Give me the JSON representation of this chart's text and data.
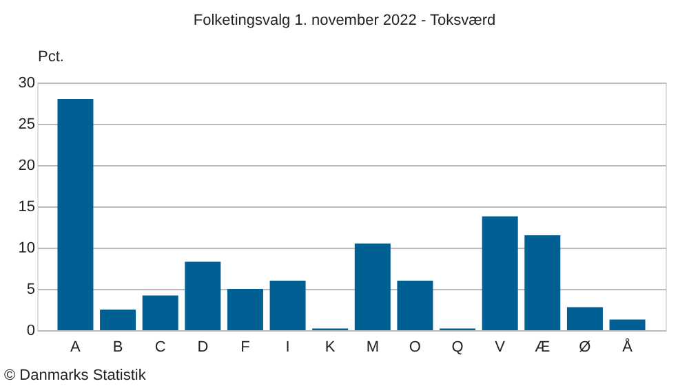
{
  "chart_data": {
    "type": "bar",
    "title": "Folketingsvalg 1. november 2022 - Toksværd",
    "ylabel": "Pct.",
    "categories": [
      "A",
      "B",
      "C",
      "D",
      "F",
      "I",
      "K",
      "M",
      "O",
      "Q",
      "V",
      "Æ",
      "Ø",
      "Å"
    ],
    "values": [
      28.0,
      2.5,
      4.2,
      8.3,
      5.0,
      6.0,
      0.2,
      10.5,
      6.0,
      0.2,
      13.8,
      11.5,
      2.8,
      1.3
    ],
    "color": "#005f93",
    "ylim": [
      0,
      30
    ],
    "yticks": [
      0,
      5,
      10,
      15,
      20,
      25,
      30
    ],
    "grid": "y",
    "annotations": [
      "© Danmarks Statistik"
    ]
  }
}
